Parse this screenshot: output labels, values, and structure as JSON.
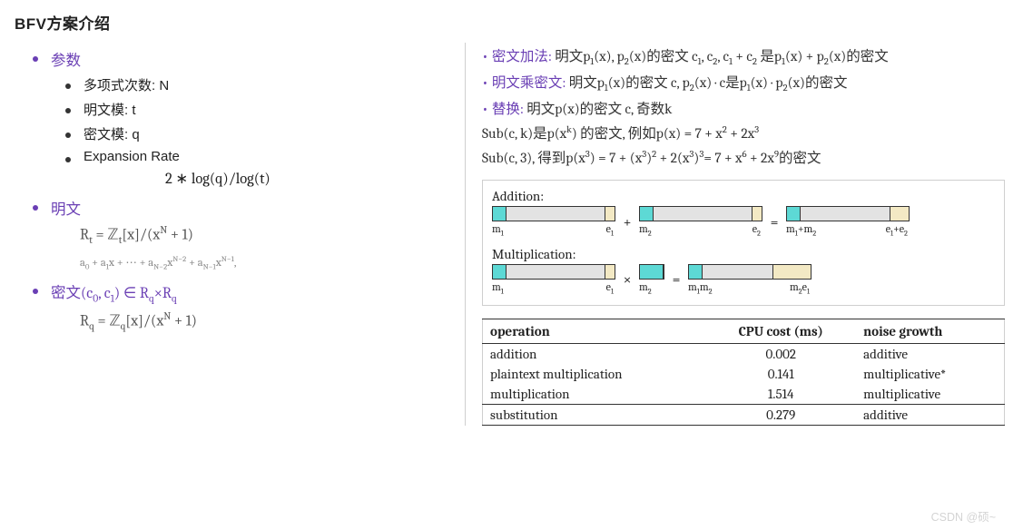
{
  "colors": {
    "purple": "#6a3fb4",
    "text": "#222222",
    "muted": "#888888",
    "border": "#cfcfcf",
    "diag_m": "#5dd9d5",
    "diag_s": "#e3e3e3",
    "diag_e": "#f3e9c4",
    "black": "#333333",
    "watermark": "#d4d4d4"
  },
  "fonts": {
    "ui": "Microsoft YaHei, Arial, sans-serif",
    "math": "Cambria, Times New Roman, serif",
    "body_size": 15,
    "title_size": 17,
    "math_size": 16.5,
    "small_math_size": 12.5
  },
  "title": "BFV方案介绍",
  "left": {
    "params_heading": "参数",
    "params_items": [
      "多项式次数: N",
      "明文模:  t",
      "密文模:  q",
      "Expansion Rate"
    ],
    "expansion_formula": "2 ∗ log(q)/log(t)",
    "plaintext_heading": "明文",
    "plaintext_ring_html": "R<sub>t</sub> = ℤ<sub>t</sub>[x]/(x<sup>N</sup> + 1)",
    "poly_expand_html": "a<sub>0</sub> + a<sub>1</sub>x + ⋯ + a<sub>N−2</sub>x<sup>N−2</sup> + a<sub>N−1</sub>x<sup>N−1</sup>,",
    "ciphertext_heading_html": "密文(c<sub>0</sub>, c<sub>1</sub>) ∈ R<sub>q</sub>×R<sub>q</sub>",
    "ciphertext_ring_html": "R<sub>q</sub> = ℤ<sub>q</sub>[x]/(x<sup>N</sup> + 1)"
  },
  "right": {
    "lines_html": [
      "<span class='dotp'>•</span><span class='lbl'>密文加法:</span> 明文p<sub>1</sub>(x), p<sub>2</sub>(x)的密文 c<sub>1</sub>, c<sub>2</sub>, c<sub>1</sub> + c<sub>2</sub> 是p<sub>1</sub>(x) + p<sub>2</sub>(x)的密文",
      "<span class='dotp'>•</span><span class='lbl'>明文乘密文:</span> 明文p<sub>1</sub>(x)的密文 c,  p<sub>2</sub>(x) · c是p<sub>1</sub>(x) · p<sub>2</sub>(x)的密文",
      "<span class='dotp'>•</span><span class='lbl'>替换:</span> 明文p(x)的密文 c,  奇数k",
      "Sub(c, k)是p(x<sup>k</sup>) 的密文, 例如p(x) = 7 + x<sup>2</sup> + 2x<sup>3</sup>",
      "Sub(c, 3),  得到p(x<sup>3</sup>) = 7 + (x<sup>3</sup>)<sup>2</sup> + 2(x<sup>3</sup>)<sup>3</sup>= 7 + x<sup>6</sup> + 2x<sup>9</sup>的密文"
    ],
    "diagram": {
      "addition_label": "Addition:",
      "multiplication_label": "Multiplication:",
      "ops": {
        "plus": "+",
        "mult": "×",
        "eq": "="
      },
      "addition": {
        "boxes": [
          {
            "m_w": 14,
            "s_w": 110,
            "e_w": 10,
            "left_html": "m<sub>1</sub>",
            "right_html": "e<sub>1</sub>"
          },
          {
            "m_w": 14,
            "s_w": 110,
            "e_w": 10,
            "left_html": "m<sub>2</sub>",
            "right_html": "e<sub>2</sub>"
          },
          {
            "m_w": 14,
            "s_w": 100,
            "e_w": 20,
            "left_html": "m<sub>1</sub>+m<sub>2</sub>",
            "right_html": "e<sub>1</sub>+e<sub>2</sub>"
          }
        ]
      },
      "multiplication": {
        "boxes": [
          {
            "m_w": 14,
            "s_w": 110,
            "e_w": 10,
            "left_html": "m<sub>1</sub>",
            "right_html": "e<sub>1</sub>"
          },
          {
            "m_w": 26,
            "s_w": 0,
            "e_w": 0,
            "left_html": "m<sub>2</sub>",
            "right_html": ""
          },
          {
            "m_w": 14,
            "s_w": 78,
            "e_w": 42,
            "left_html": "m<sub>1</sub>m<sub>2</sub>",
            "right_html": "m<sub>2</sub>e<sub>1</sub>"
          }
        ]
      }
    },
    "table": {
      "columns": [
        "operation",
        "CPU cost (ms)",
        "noise growth"
      ],
      "rows": [
        [
          "addition",
          "0.002",
          "additive"
        ],
        [
          "plaintext multiplication",
          "0.141",
          "multiplicative*"
        ],
        [
          "multiplication",
          "1.514",
          "multiplicative"
        ],
        [
          "substitution",
          "0.279",
          "additive"
        ]
      ],
      "sep_before_row": 3
    }
  },
  "watermark": "CSDN @硕~"
}
